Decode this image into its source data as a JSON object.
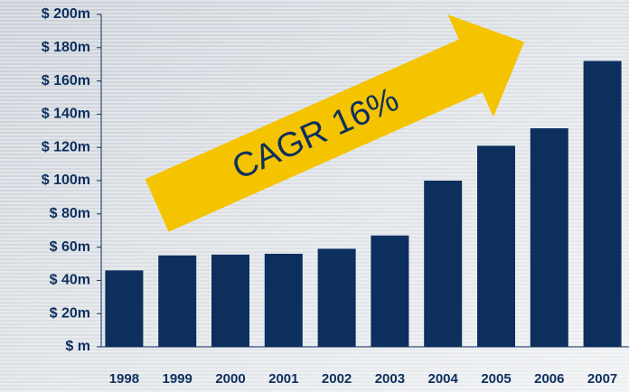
{
  "chart_data": {
    "type": "bar",
    "categories": [
      "1998",
      "1999",
      "2000",
      "2001",
      "2002",
      "2003",
      "2004",
      "2005",
      "2006",
      "2007"
    ],
    "values": [
      46,
      55,
      55.5,
      56,
      59,
      67,
      100,
      121,
      131.5,
      172
    ],
    "color": "#0d2f5e",
    "ylim": [
      0,
      200
    ],
    "yticks": [
      {
        "value": 0,
        "label": "$ m"
      },
      {
        "value": 20,
        "label": "$ 20m"
      },
      {
        "value": 40,
        "label": "$ 40m"
      },
      {
        "value": 60,
        "label": "$ 60m"
      },
      {
        "value": 80,
        "label": "$ 80m"
      },
      {
        "value": 100,
        "label": "$ 100m"
      },
      {
        "value": 120,
        "label": "$ 120m"
      },
      {
        "value": 140,
        "label": "$ 140m"
      },
      {
        "value": 160,
        "label": "$ 160m"
      },
      {
        "value": 180,
        "label": "$ 180m"
      },
      {
        "value": 200,
        "label": "$ 200m"
      }
    ],
    "annotation": "CAGR 16%"
  }
}
